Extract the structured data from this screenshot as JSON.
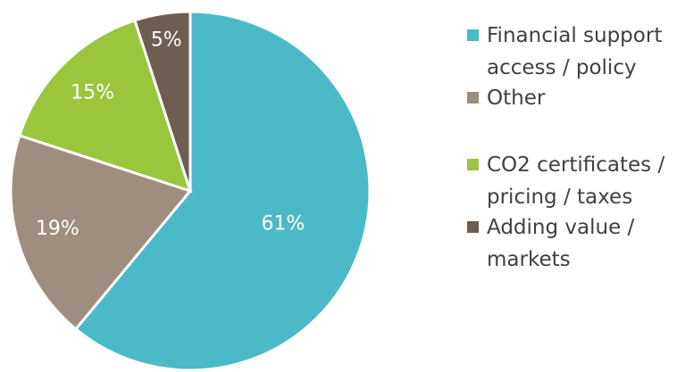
{
  "chart_data": {
    "type": "pie",
    "categories": [
      "Financial support access / policy",
      "Other",
      "CO2 certificates / pricing / taxes",
      "Adding value / markets"
    ],
    "values": [
      61,
      19,
      15,
      5
    ],
    "value_labels": [
      "61%",
      "19%",
      "15%",
      "5%"
    ],
    "colors": [
      "#4bbac6",
      "#9d8e80",
      "#9bc53d",
      "#6d5e52"
    ],
    "legend": "right"
  }
}
